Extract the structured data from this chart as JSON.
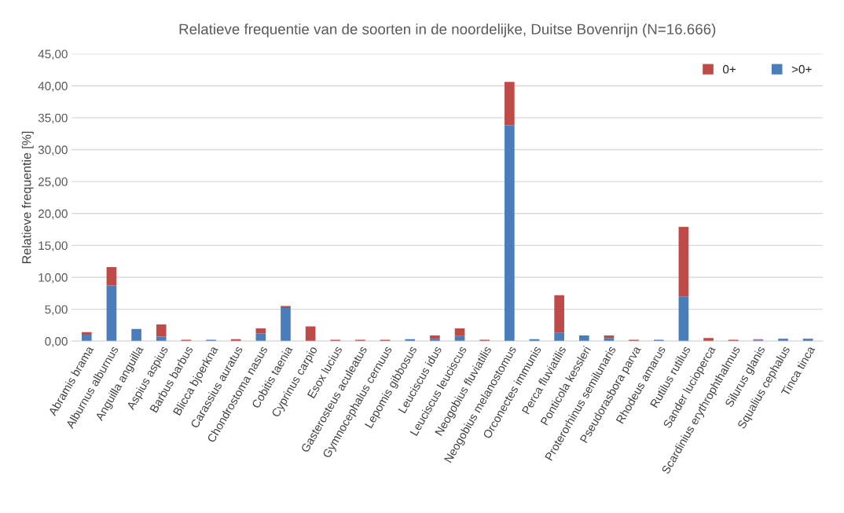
{
  "chart_data": {
    "type": "bar",
    "stacked": true,
    "title": "Relatieve frequentie van de soorten in de noordelijke, Duitse Bovenrijn (N=16.666)",
    "ylabel": "Relatieve frequentie [%]",
    "categories": [
      "Abramis brama",
      "Alburnus alburnus",
      "Anguilla anguilla",
      "Aspius aspius",
      "Barbus barbus",
      "Blicca bjoerkna",
      "Carassius auratus",
      "Chondrostoma nasus",
      "Cobitis taenia",
      "Cyprinus carpio",
      "Esox lucius",
      "Gasterosteus aculeatus",
      "Gymnocephalus cernuus",
      "Lepomis gibbosus",
      "Leuciscus idus",
      "Leuciscus leuciscus",
      "Neogobius fluviatilis",
      "Neogobius melanostomus",
      "Orconectes immunis",
      "Perca fluviatilis",
      "Ponticola kessleri",
      "Proterorhinus semilunaris",
      "Pseudorasbora parva",
      "Rhodeus amarus",
      "Rutilus rutilus",
      "Sander lucioperca",
      "Scardinius erythrophthalmus",
      "Silurus glanis",
      "Squalius cephalus",
      "Tinca tinca"
    ],
    "series": [
      {
        "name": ">0+",
        "color": "#4a7ebb",
        "values": [
          1.0,
          8.7,
          1.9,
          0.7,
          0,
          0.2,
          0,
          1.2,
          5.2,
          0,
          0,
          0,
          0,
          0.3,
          0.3,
          0.8,
          0,
          33.8,
          0.3,
          1.3,
          0.9,
          0.5,
          0,
          0.2,
          7.0,
          0,
          0,
          0.2,
          0.3,
          0.3
        ]
      },
      {
        "name": "0+",
        "color": "#be4b48",
        "values": [
          0.4,
          2.9,
          0,
          1.9,
          0.2,
          0,
          0.3,
          0.8,
          0.3,
          2.3,
          0.2,
          0.2,
          0.2,
          0,
          0.6,
          1.2,
          0.2,
          6.8,
          0,
          5.9,
          0,
          0.4,
          0.2,
          0,
          10.9,
          0.5,
          0.2,
          0.1,
          0.1,
          0.1
        ]
      }
    ],
    "ylim": [
      0,
      45
    ],
    "yticks": [
      {
        "value": 0,
        "label": "0,00"
      },
      {
        "value": 5,
        "label": "5,00"
      },
      {
        "value": 10,
        "label": "10,00"
      },
      {
        "value": 15,
        "label": "15,00"
      },
      {
        "value": 20,
        "label": "20,00"
      },
      {
        "value": 25,
        "label": "25,00"
      },
      {
        "value": 30,
        "label": "30,00"
      },
      {
        "value": 35,
        "label": "35,00"
      },
      {
        "value": 40,
        "label": "40,00"
      },
      {
        "value": 45,
        "label": "45,00"
      }
    ],
    "grid": "y",
    "legend": "top right"
  }
}
